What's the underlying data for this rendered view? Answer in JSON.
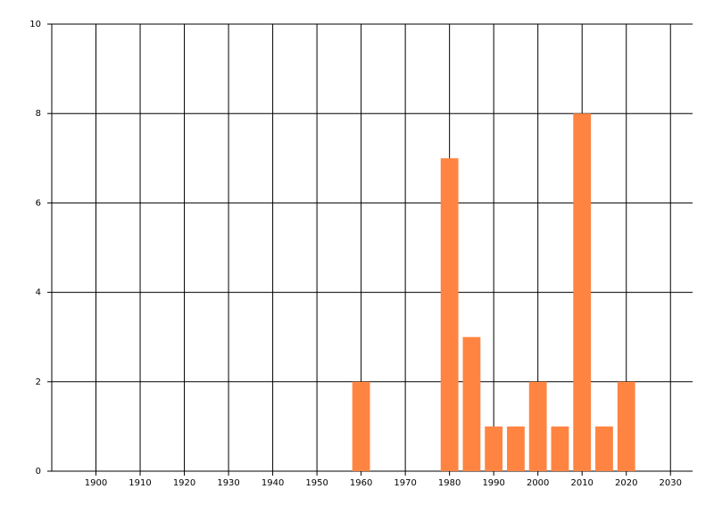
{
  "chart_data": {
    "type": "bar",
    "x": [
      1960,
      1980,
      1985,
      1990,
      1995,
      2000,
      2005,
      2010,
      2015,
      2020
    ],
    "values": [
      2,
      7,
      3,
      1,
      1,
      2,
      1,
      8,
      1,
      2
    ],
    "color": "#ff8442",
    "xlim": [
      1890,
      2035
    ],
    "xticks": [
      1900,
      1910,
      1920,
      1930,
      1940,
      1950,
      1960,
      1970,
      1980,
      1990,
      2000,
      2010,
      2020,
      2030
    ],
    "ylim": [
      0,
      10
    ],
    "yticks": [
      0,
      2,
      4,
      6,
      8,
      10
    ],
    "grid": true
  }
}
